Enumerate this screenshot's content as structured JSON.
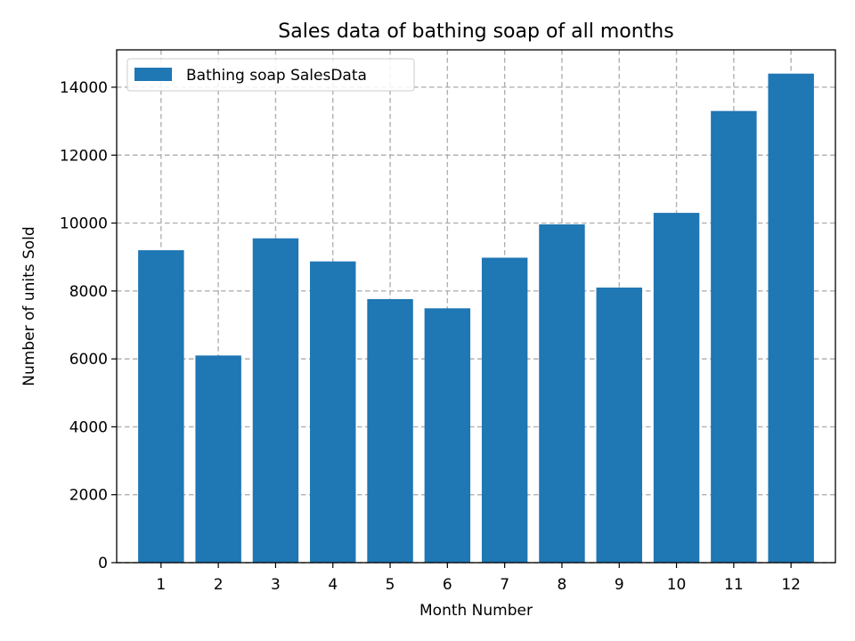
{
  "chart_data": {
    "type": "bar",
    "title": "Sales data of bathing soap of all months",
    "xlabel": "Month Number",
    "ylabel": "Number of units Sold",
    "categories": [
      "1",
      "2",
      "3",
      "4",
      "5",
      "6",
      "7",
      "8",
      "9",
      "10",
      "11",
      "12"
    ],
    "series": [
      {
        "name": "Bathing soap SalesData",
        "values": [
          9200,
          6100,
          9550,
          8870,
          7760,
          7490,
          8980,
          9960,
          8100,
          10300,
          13300,
          14400
        ]
      }
    ],
    "ylim": [
      0,
      15100
    ],
    "yticks": [
      0,
      2000,
      4000,
      6000,
      8000,
      10000,
      12000,
      14000
    ],
    "grid": true,
    "legend_position": "top-left",
    "colors": {
      "bar": "#1f77b4",
      "grid": "#b0b0b0",
      "frame": "#000000"
    }
  }
}
